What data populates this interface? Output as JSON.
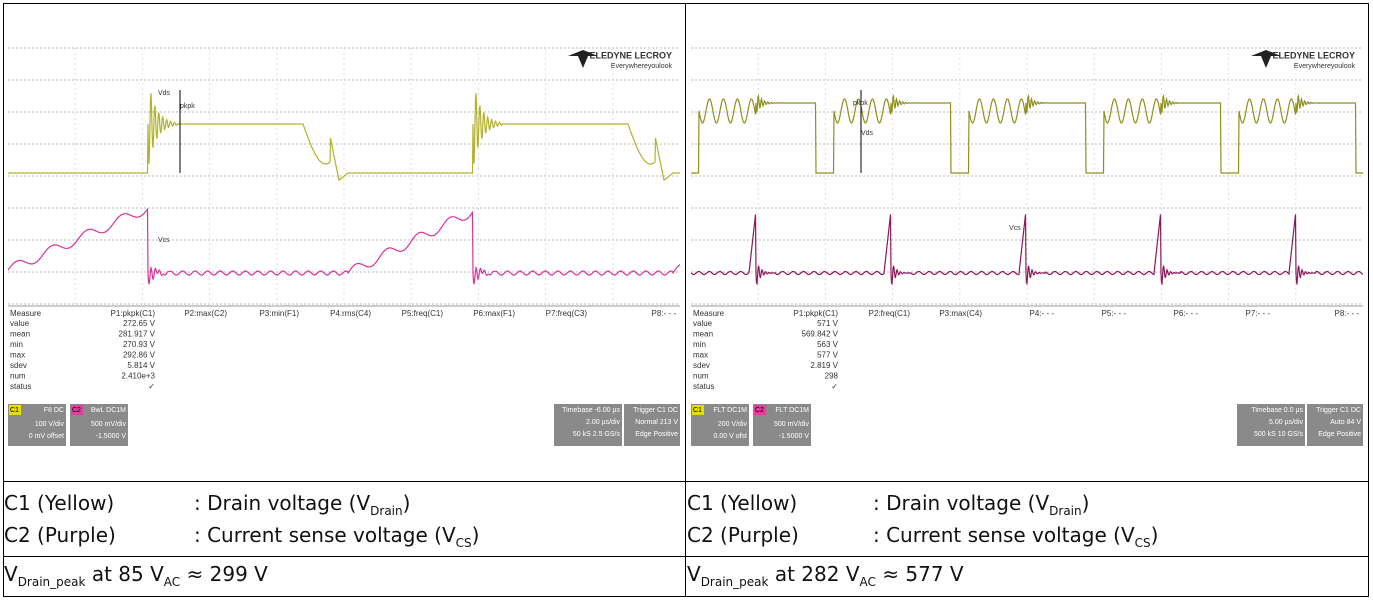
{
  "panels": [
    {
      "logo": "TELEDYNE LECROY",
      "tagline": "Everywhereyoulook",
      "trace_labels": [
        "Vds",
        "pkpk",
        "Vcs"
      ],
      "measure": {
        "headers": [
          "Measure",
          "P1:pkpk(C1)",
          "P2:max(C2)",
          "P3:min(F1)",
          "P4:rms(C4)",
          "P5:freq(C1)",
          "P6:max(F1)",
          "P7:freq(C3)",
          "P8:- - -"
        ],
        "rows": [
          [
            "value",
            "272.65 V"
          ],
          [
            "mean",
            "281.917 V"
          ],
          [
            "min",
            "270.93 V"
          ],
          [
            "max",
            "292.86 V"
          ],
          [
            "sdev",
            "5.814 V"
          ],
          [
            "num",
            "2.410e+3"
          ],
          [
            "status",
            "✓"
          ]
        ]
      },
      "channels": [
        {
          "id": "C1",
          "mode": "F8 DC",
          "scale": "100 V/div",
          "offset": "0 mV offset"
        },
        {
          "id": "C2",
          "mode": "BwL DC1M",
          "scale": "500 mV/div",
          "offset": "-1.5000 V"
        }
      ],
      "timebase": {
        "label": "Timebase -6.00 µs",
        "scale": "2.00 µs/div",
        "rate": "50 kS  2.5 GS/s"
      },
      "trigger": {
        "label": "Trigger  C1 DC",
        "mode": "Normal  213 V",
        "type": "Edge  Positive"
      },
      "legend": [
        {
          "name": "C1 (Yellow)",
          "desc": ": Drain voltage (V",
          "sub": "Drain",
          "end": ")"
        },
        {
          "name": "C2 (Purple)",
          "desc": ": Current sense voltage (V",
          "sub": "CS",
          "end": ")"
        }
      ],
      "peak": {
        "v": "V",
        "sub": "Drain_peak",
        "mid": " at 85 V",
        "sub2": "AC",
        "end": " ≈ 299 V"
      }
    },
    {
      "logo": "TELEDYNE LECROY",
      "tagline": "Everywhereyoulook",
      "trace_labels": [
        "Vds",
        "pkpk",
        "Vcs"
      ],
      "measure": {
        "headers": [
          "Measure",
          "P1:pkpk(C1)",
          "P2:freq(C1)",
          "P3:max(C4)",
          "P4:- - -",
          "P5:- - -",
          "P6:- - -",
          "P7:- - -",
          "P8:- - -"
        ],
        "rows": [
          [
            "value",
            "571 V"
          ],
          [
            "mean",
            "569.842 V"
          ],
          [
            "min",
            "563 V"
          ],
          [
            "max",
            "577 V"
          ],
          [
            "sdev",
            "2.819 V"
          ],
          [
            "num",
            "298"
          ],
          [
            "status",
            "✓"
          ]
        ]
      },
      "channels": [
        {
          "id": "C1",
          "mode": "FLT DC1M",
          "scale": "200 V/div",
          "offset": "0.00 V ofst"
        },
        {
          "id": "C2",
          "mode": "FLT DC1M",
          "scale": "500 mV/div",
          "offset": "-1.5000 V"
        }
      ],
      "timebase": {
        "label": "Timebase  0.0 µs",
        "scale": "5.00 µs/div",
        "rate": "500 kS  10 GS/s"
      },
      "trigger": {
        "label": "Trigger  C1 DC",
        "mode": "Auto  84 V",
        "type": "Edge  Positive"
      },
      "legend": [
        {
          "name": "C1 (Yellow)",
          "desc": ": Drain voltage (V",
          "sub": "Drain",
          "end": ")"
        },
        {
          "name": "C2 (Purple)",
          "desc": ": Current sense voltage (V",
          "sub": "CS",
          "end": ")"
        }
      ],
      "peak": {
        "v": "V",
        "sub": "Drain_peak",
        "mid": " at 282 V",
        "sub2": "AC",
        "end": " ≈ 577 V"
      }
    }
  ]
}
